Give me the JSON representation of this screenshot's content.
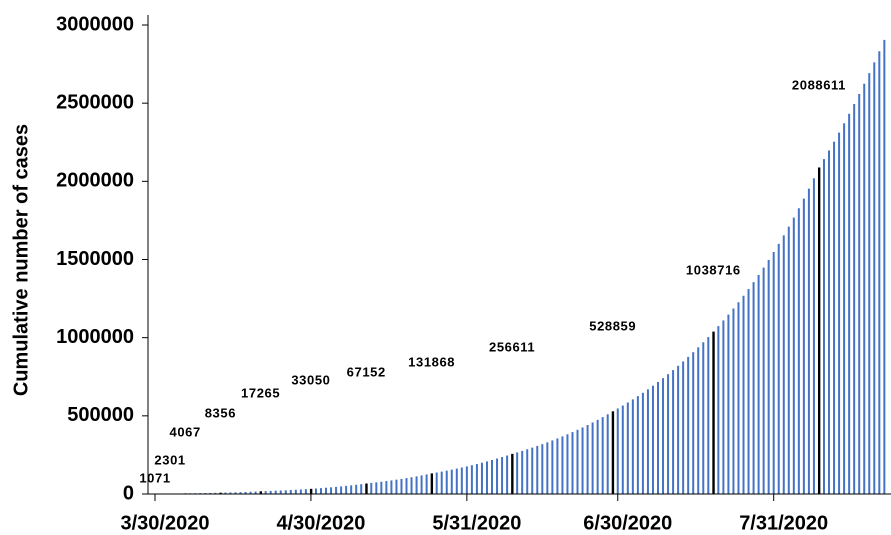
{
  "chart_data": {
    "type": "bar",
    "y_label": "Cumulative number of cases",
    "color": "#4472c4",
    "highlight_color": "#000000",
    "ylim": [
      0,
      3000000
    ],
    "yticks": [
      0,
      500000,
      1000000,
      1500000,
      2000000,
      2500000,
      3000000
    ],
    "grid": false,
    "categories": [
      "3/30/2020",
      null,
      null,
      null,
      null,
      null,
      null,
      null,
      null,
      null,
      null,
      null,
      null,
      null,
      null,
      null,
      null,
      null,
      null,
      null,
      null,
      null,
      null,
      null,
      null,
      null,
      null,
      null,
      null,
      null,
      null,
      "4/30/2020",
      null,
      null,
      null,
      null,
      null,
      null,
      null,
      null,
      null,
      null,
      null,
      null,
      null,
      null,
      null,
      null,
      null,
      null,
      null,
      null,
      null,
      null,
      null,
      null,
      null,
      null,
      null,
      null,
      null,
      null,
      "5/31/2020",
      null,
      null,
      null,
      null,
      null,
      null,
      null,
      null,
      null,
      null,
      null,
      null,
      null,
      null,
      null,
      null,
      null,
      null,
      null,
      null,
      null,
      null,
      null,
      null,
      null,
      null,
      null,
      null,
      null,
      "6/30/2020",
      null,
      null,
      null,
      null,
      null,
      null,
      null,
      null,
      null,
      null,
      null,
      null,
      null,
      null,
      null,
      null,
      null,
      null,
      null,
      null,
      null,
      null,
      null,
      null,
      null,
      null,
      null,
      null,
      null,
      null,
      "7/31/2020",
      null,
      null,
      null,
      null,
      null,
      null,
      null,
      null,
      null,
      null,
      null,
      null,
      null,
      null,
      null,
      null,
      null,
      null,
      null,
      null,
      null,
      null
    ],
    "values": [
      1071,
      1382,
      1783,
      2301,
      2782,
      3364,
      4067,
      4508,
      4997,
      5539,
      6139,
      6805,
      7542,
      8356,
      9149,
      10017,
      10968,
      12009,
      13149,
      14397,
      15764,
      17265,
      18424,
      19660,
      20979,
      22387,
      23889,
      25492,
      27202,
      29027,
      30975,
      33050,
      35251,
      37599,
      40103,
      42774,
      45623,
      48662,
      51903,
      55360,
      59047,
      62980,
      67152,
      70731,
      74501,
      78472,
      82655,
      87061,
      91701,
      96589,
      101737,
      107160,
      112872,
      118888,
      125225,
      131868,
      137472,
      143315,
      149406,
      155756,
      162375,
      169276,
      176470,
      183970,
      191789,
      199940,
      208437,
      217296,
      226531,
      236159,
      246195,
      256611,
      266054,
      275845,
      285996,
      296521,
      307433,
      318746,
      330476,
      342638,
      355247,
      368320,
      381874,
      395927,
      410497,
      425603,
      441265,
      457504,
      474340,
      491796,
      509894,
      528859,
      547000,
      565762,
      585168,
      605240,
      626000,
      647472,
      669681,
      692651,
      716409,
      740982,
      766398,
      792686,
      819875,
      847997,
      877083,
      907168,
      938284,
      970468,
      1003756,
      1038716,
      1073825,
      1110120,
      1147642,
      1186432,
      1226533,
      1267990,
      1310848,
      1355155,
      1400959,
      1448311,
      1497264,
      1547871,
      1600189,
      1654275,
      1710190,
      1767994,
      1827752,
      1889530,
      1953396,
      2019421,
      2088611,
      2142288,
      2197345,
      2253817,
      2311740,
      2371152,
      2432091,
      2494596,
      2558707,
      2624466,
      2691915,
      2761097,
      2832057,
      2904841
    ],
    "value_labels": [
      "1071",
      null,
      null,
      "2301",
      null,
      null,
      "4067",
      null,
      null,
      null,
      null,
      null,
      null,
      "8356",
      null,
      null,
      null,
      null,
      null,
      null,
      null,
      "17265",
      null,
      null,
      null,
      null,
      null,
      null,
      null,
      null,
      null,
      "33050",
      null,
      null,
      null,
      null,
      null,
      null,
      null,
      null,
      null,
      null,
      "67152",
      null,
      null,
      null,
      null,
      null,
      null,
      null,
      null,
      null,
      null,
      null,
      null,
      "131868",
      null,
      null,
      null,
      null,
      null,
      null,
      null,
      null,
      null,
      null,
      null,
      null,
      null,
      null,
      null,
      "256611",
      null,
      null,
      null,
      null,
      null,
      null,
      null,
      null,
      null,
      null,
      null,
      null,
      null,
      null,
      null,
      null,
      null,
      null,
      null,
      "528859",
      null,
      null,
      null,
      null,
      null,
      null,
      null,
      null,
      null,
      null,
      null,
      null,
      null,
      null,
      null,
      null,
      null,
      null,
      null,
      "1038716",
      null,
      null,
      null,
      null,
      null,
      null,
      null,
      null,
      null,
      null,
      null,
      null,
      null,
      null,
      null,
      null,
      null,
      null,
      null,
      null,
      "2088611",
      null,
      null,
      null,
      null,
      null,
      null,
      null,
      null,
      null,
      null,
      null,
      null,
      null
    ]
  }
}
